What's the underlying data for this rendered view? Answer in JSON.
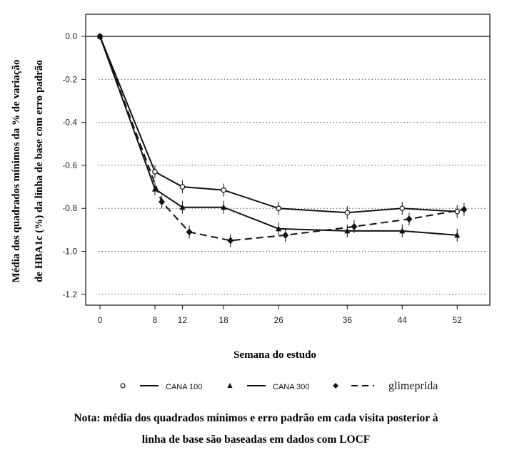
{
  "chart_data": {
    "type": "line",
    "xlabel": "Semana do estudo",
    "ylabel_line1": "Média dos quadrados mínimos da % de variação",
    "ylabel_line2": "de HBA1c (%) da linha de base com erro padrão",
    "x_ticks": [
      0,
      8,
      12,
      18,
      26,
      36,
      44,
      52
    ],
    "y_ticks": [
      0.0,
      -0.2,
      -0.4,
      -0.6,
      -0.8,
      -1.0,
      -1.2
    ],
    "y_tick_labels": [
      "0.0",
      "-0.2",
      "-0.4",
      "-0.6",
      "-0.8",
      "-1.0",
      "-1.2"
    ],
    "xlim": [
      0,
      53.5
    ],
    "ylim": [
      -1.25,
      0.03
    ],
    "grid": "horizontal dotted",
    "reference_line_y": 0,
    "legend_position": "bottom",
    "series": [
      {
        "name": "CANA 100",
        "marker": "open-circle",
        "line": "solid",
        "x": [
          0,
          8,
          12,
          18,
          26,
          36,
          44,
          52
        ],
        "values": [
          0.0,
          -0.63,
          -0.7,
          -0.715,
          -0.8,
          -0.82,
          -0.8,
          -0.815
        ],
        "se": [
          0.01,
          0.03,
          0.03,
          0.03,
          0.03,
          0.03,
          0.03,
          0.03
        ]
      },
      {
        "name": "CANA 300",
        "marker": "filled-triangle",
        "line": "solid",
        "x": [
          0,
          8,
          12,
          18,
          26,
          36,
          44,
          52
        ],
        "values": [
          0.0,
          -0.71,
          -0.795,
          -0.795,
          -0.895,
          -0.905,
          -0.905,
          -0.925
        ],
        "se": [
          0.01,
          0.03,
          0.03,
          0.03,
          0.03,
          0.03,
          0.03,
          0.03
        ]
      },
      {
        "name": "glimeprida",
        "marker": "filled-diamond",
        "line": "dashed",
        "x": [
          0,
          9,
          13,
          19,
          27,
          37,
          45,
          53
        ],
        "values": [
          0.0,
          -0.77,
          -0.91,
          -0.95,
          -0.925,
          -0.885,
          -0.85,
          -0.805
        ],
        "se": [
          0.01,
          0.03,
          0.03,
          0.03,
          0.03,
          0.03,
          0.03,
          0.03
        ]
      }
    ]
  },
  "legend": {
    "items": [
      {
        "label": "CANA 100",
        "marker": "open-circle",
        "line": "solid"
      },
      {
        "label": "CANA 300",
        "marker": "filled-triangle",
        "line": "solid"
      },
      {
        "label": "glimeprida",
        "marker": "filled-diamond",
        "line": "dashed"
      }
    ]
  },
  "note": {
    "line1": "Nota: média dos quadrados mínimos e erro padrão em cada visita posterior à",
    "line2": "linha de base são baseadas em dados com LOCF"
  }
}
